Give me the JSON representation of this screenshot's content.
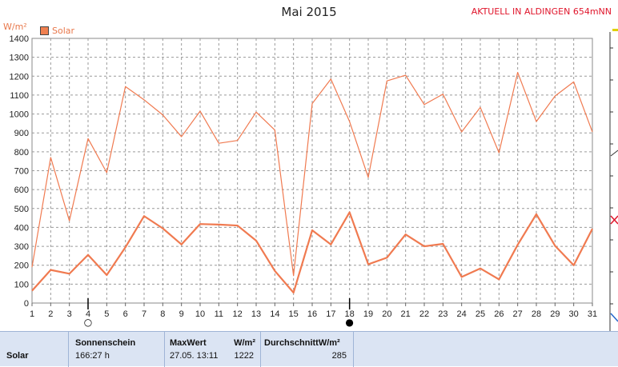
{
  "header": {
    "title": "Mai 2015",
    "location_note": "AKTUELL IN ALDINGEN 654mNN",
    "unit": "W/m²"
  },
  "legend": {
    "label": "Solar",
    "color": "#f08050"
  },
  "chart_data": {
    "type": "line",
    "title": "Mai 2015",
    "ylabel": "W/m²",
    "ylim": [
      0,
      1400
    ],
    "y_ticks": [
      0,
      100,
      200,
      300,
      400,
      500,
      600,
      700,
      800,
      900,
      1000,
      1100,
      1200,
      1300,
      1400
    ],
    "grid": true,
    "legend_position": "top-left",
    "x": [
      1,
      2,
      3,
      4,
      5,
      6,
      7,
      8,
      9,
      10,
      11,
      12,
      13,
      14,
      15,
      16,
      17,
      18,
      19,
      20,
      21,
      22,
      23,
      24,
      25,
      26,
      27,
      28,
      29,
      30,
      31
    ],
    "series": [
      {
        "name": "Solar",
        "color": "#f07a50",
        "values": [
          190,
          770,
          435,
          870,
          690,
          1145,
          1075,
          995,
          880,
          1015,
          845,
          860,
          1010,
          915,
          145,
          1055,
          1185,
          960,
          665,
          1175,
          1205,
          1050,
          1105,
          905,
          1035,
          795,
          1220,
          960,
          1095,
          1170,
          905
        ]
      },
      {
        "name": "Solar",
        "color": "#f07a50",
        "values": [
          65,
          175,
          155,
          255,
          148,
          295,
          460,
          395,
          310,
          418,
          415,
          410,
          330,
          170,
          55,
          385,
          310,
          480,
          205,
          240,
          363,
          300,
          313,
          138,
          183,
          125,
          308,
          470,
          303,
          200,
          393
        ]
      }
    ],
    "markers": [
      {
        "day": 4,
        "symbol": "○"
      },
      {
        "day": 18,
        "symbol": "●"
      }
    ]
  },
  "stats_table": {
    "row_label": "Solar",
    "columns": [
      {
        "header": "Sonnenschein",
        "value": "166:27 h"
      },
      {
        "header": "MaxWert",
        "unit": "W/m²",
        "date": "27.05.  13:11",
        "value": "1222"
      },
      {
        "header": "DurchschnittW/m²",
        "value": "285"
      }
    ]
  }
}
